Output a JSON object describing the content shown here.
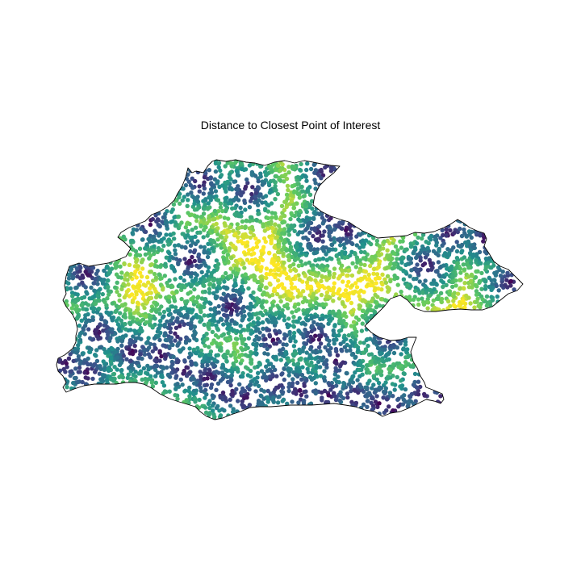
{
  "title": "Distance to Closest Point of Interest",
  "chart_data": {
    "type": "scatter",
    "title": "Distance to Closest Point of Interest",
    "xlabel": "",
    "ylabel": "",
    "axes_visible": false,
    "grid": false,
    "legend": "none",
    "colormap": "viridis",
    "colormap_stops": [
      "#440154",
      "#3b528b",
      "#21918c",
      "#5ec962",
      "#fde725"
    ],
    "color_encoding": "scaled distance to nearest point of interest (0 = dark purple, 1 = yellow)",
    "marker": "filled circle",
    "outline_color": "#000000",
    "approx_point_count": 4500
  }
}
